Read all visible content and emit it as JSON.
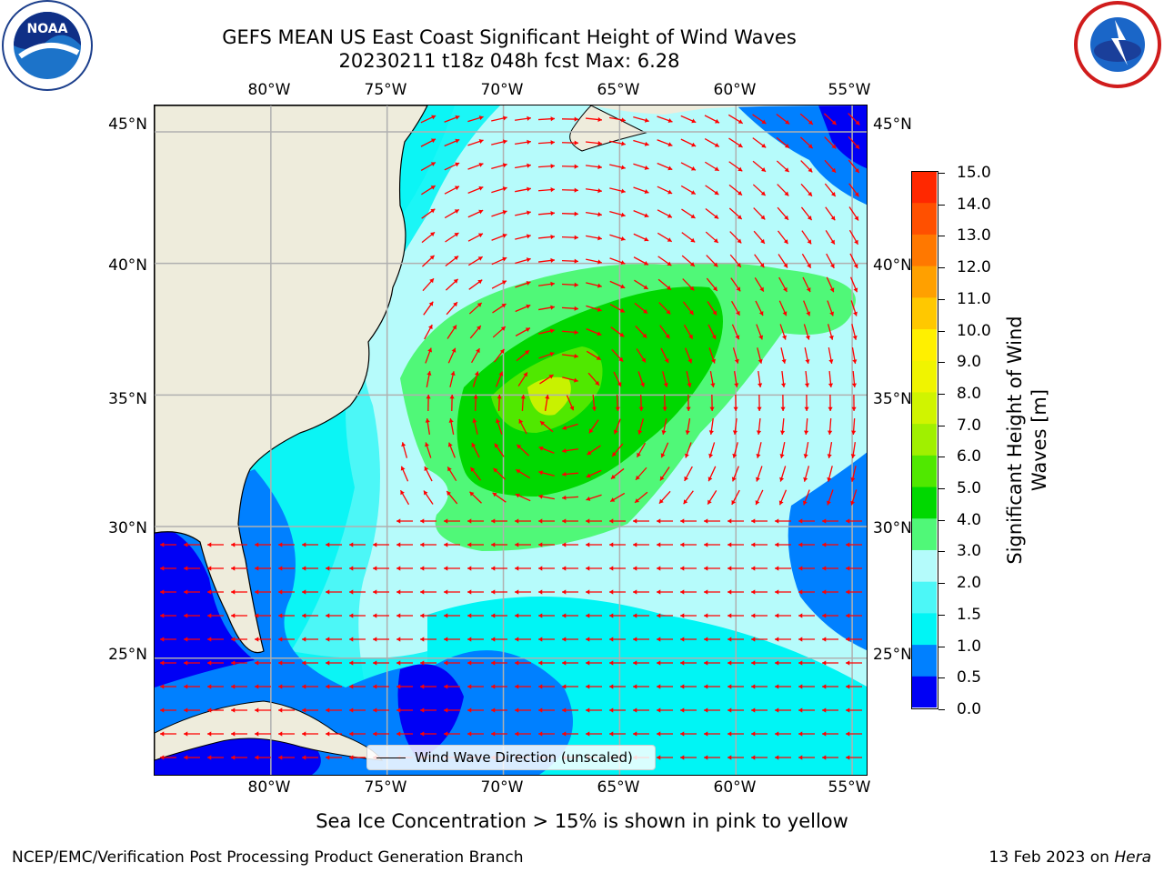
{
  "header": {
    "title_line1": "GEFS MEAN US East Coast Significant Height of Wind Waves",
    "title_line2": "20230211 t18z 048h fcst   Max: 6.28"
  },
  "logos": {
    "left_name": "noaa-logo",
    "left_text": "NOAA",
    "right_name": "national-weather-service-logo"
  },
  "axes": {
    "lon_ticks": [
      "80°W",
      "75°W",
      "70°W",
      "65°W",
      "60°W",
      "55°W"
    ],
    "lat_ticks": [
      "45°N",
      "40°N",
      "35°N",
      "30°N",
      "25°N"
    ],
    "lon_range": [
      -85,
      -54.3
    ],
    "lat_range": [
      20.5,
      46
    ]
  },
  "legend": {
    "label": "Wind Wave Direction (unscaled)"
  },
  "colorbar": {
    "label": "Significant Height of Wind Waves [m]",
    "ticks": [
      "15.0",
      "14.0",
      "13.0",
      "12.0",
      "11.0",
      "10.0",
      "9.0",
      "8.0",
      "7.0",
      "6.0",
      "5.0",
      "4.0",
      "3.0",
      "2.0",
      "1.5",
      "1.0",
      "0.5",
      "0.0"
    ],
    "colors": [
      "#0000f5",
      "#0080ff",
      "#00f5f5",
      "#4cf7f7",
      "#b4fbfb",
      "#50f878",
      "#00d800",
      "#50e800",
      "#a0f000",
      "#d0f400",
      "#f0f400",
      "#fff000",
      "#ffc800",
      "#ffa000",
      "#ff7800",
      "#ff5000",
      "#ff2800",
      "#ff0000"
    ],
    "arrow_color": "#ff0000",
    "land_color": "#eeecdc"
  },
  "footer": {
    "note": "Sea Ice Concentration > 15% is shown in pink to yellow",
    "credit": "NCEP/EMC/Verification Post Processing Product Generation Branch",
    "date": "13 Feb 2023 on ",
    "machine": "Hera"
  }
}
